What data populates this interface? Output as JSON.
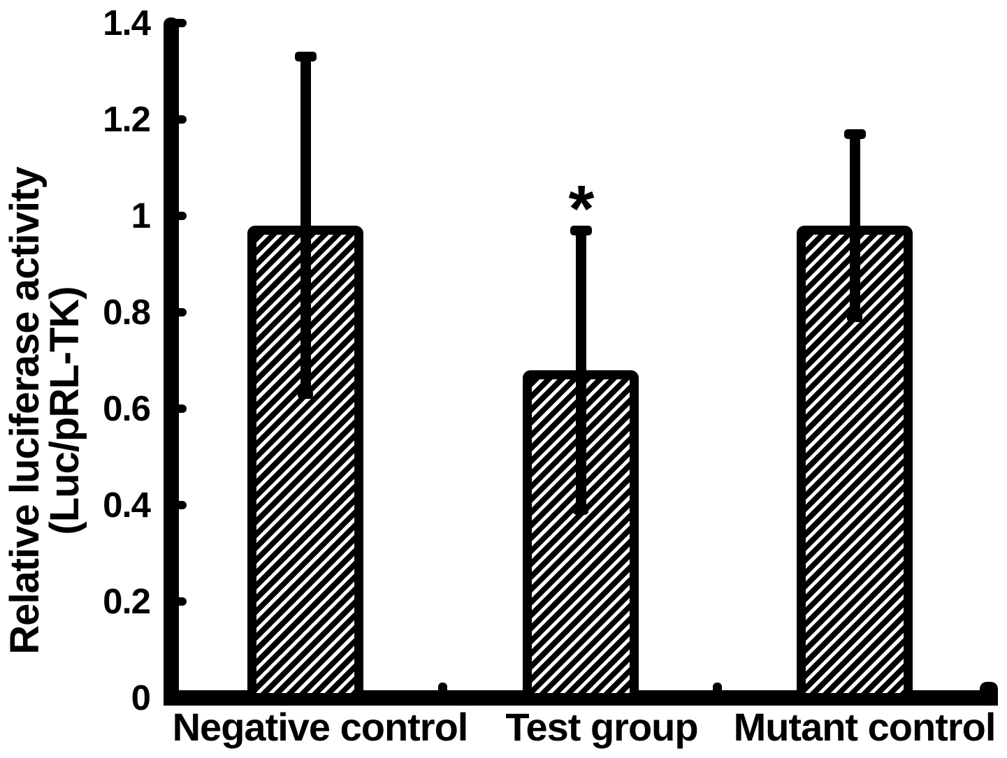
{
  "figure": {
    "background_color": "#ffffff",
    "ink_color": "#000000"
  },
  "chart_data": {
    "type": "bar",
    "title": "",
    "xlabel": "",
    "ylabel": "Relative luciferase activity (Luc/pRL-TK)",
    "ylabel_lines": [
      "Relative luciferase activity",
      "(Luc/pRL-TK)"
    ],
    "ylim": [
      0,
      1.4
    ],
    "grid": false,
    "legend": "none",
    "bar_fill": "black-diagonal-hatch",
    "categories": [
      "Negative control",
      "Test group",
      "Mutant control"
    ],
    "series": [
      {
        "category": "Negative control",
        "value": 0.98,
        "error_upper_reach": 1.33,
        "error_lower_reach": 0.63,
        "significance": ""
      },
      {
        "category": "Test group",
        "value": 0.68,
        "error_upper_reach": 0.97,
        "error_lower_reach": 0.39,
        "significance": "*"
      },
      {
        "category": "Mutant control",
        "value": 0.98,
        "error_upper_reach": 1.17,
        "error_lower_reach": 0.79,
        "significance": ""
      }
    ],
    "yticks": [
      {
        "value": 0,
        "label": "0"
      },
      {
        "value": 0.2,
        "label": "0.2"
      },
      {
        "value": 0.4,
        "label": "0.4"
      },
      {
        "value": 0.6,
        "label": "0.6"
      },
      {
        "value": 0.8,
        "label": "0.8"
      },
      {
        "value": 1,
        "label": "1"
      },
      {
        "value": 1.2,
        "label": "1.2"
      },
      {
        "value": 1.4,
        "label": "1.4"
      }
    ]
  }
}
